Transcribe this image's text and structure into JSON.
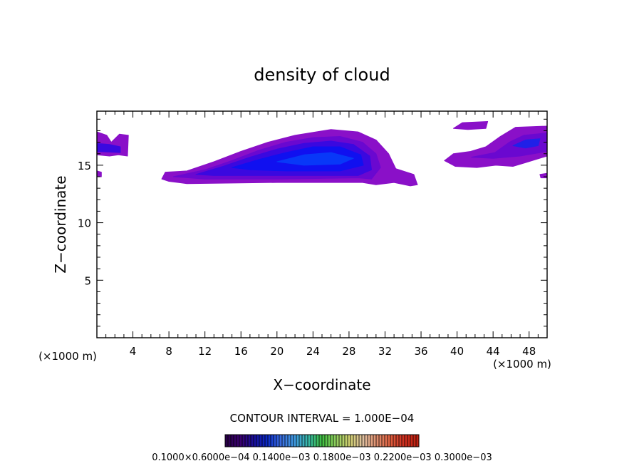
{
  "chart_data": {
    "type": "heatmap",
    "title": "density of cloud",
    "xlabel": "X−coordinate",
    "ylabel": "Z−coordinate",
    "x_unit": "(×1000 m)",
    "xlim": [
      0,
      50
    ],
    "ylim": [
      0,
      19.7
    ],
    "xticks": [
      4,
      8,
      12,
      16,
      20,
      24,
      28,
      32,
      36,
      40,
      44,
      48
    ],
    "yticks": [
      5,
      10,
      15
    ],
    "contour_interval": "CONTOUR INTERVAL = 1.000E−04",
    "colorbar_labels": "0.1000×0.6000e−04 0.1400e−03 0.1800e−03 0.2200e−03 0.3000e−03",
    "colorbar_colors": [
      "#2a004a",
      "#3b0070",
      "#1a0f9a",
      "#0a2ac8",
      "#3a6ee0",
      "#3f9ae0",
      "#37b8a8",
      "#3fbf3f",
      "#8fcf5f",
      "#d0d070",
      "#e0c0a0",
      "#e09070",
      "#e06040",
      "#d03020",
      "#c02010"
    ],
    "cloud_shapes": [
      {
        "name": "main-cloud-purple",
        "color": "#8a10c8",
        "points": [
          [
            7.2,
            13.8
          ],
          [
            7.6,
            14.4
          ],
          [
            10,
            14.5
          ],
          [
            13,
            15.3
          ],
          [
            16,
            16.2
          ],
          [
            19,
            17.0
          ],
          [
            22,
            17.6
          ],
          [
            26,
            18.1
          ],
          [
            29,
            17.9
          ],
          [
            31,
            17.2
          ],
          [
            32.4,
            16.0
          ],
          [
            33.2,
            14.7
          ],
          [
            35.2,
            14.2
          ],
          [
            35.6,
            13.3
          ],
          [
            34.8,
            13.2
          ],
          [
            33,
            13.5
          ],
          [
            31,
            13.3
          ],
          [
            29.5,
            13.5
          ],
          [
            20,
            13.5
          ],
          [
            10,
            13.4
          ],
          [
            8,
            13.6
          ]
        ]
      },
      {
        "name": "main-cloud-violet",
        "color": "#6a08d0",
        "points": [
          [
            8.5,
            14.0
          ],
          [
            12,
            14.6
          ],
          [
            15,
            15.4
          ],
          [
            18,
            16.3
          ],
          [
            21,
            17.0
          ],
          [
            24,
            17.4
          ],
          [
            27,
            17.5
          ],
          [
            29.5,
            17.0
          ],
          [
            31,
            16.0
          ],
          [
            31.5,
            14.8
          ],
          [
            30.5,
            13.8
          ],
          [
            29,
            13.9
          ],
          [
            20,
            13.8
          ],
          [
            12,
            13.8
          ]
        ]
      },
      {
        "name": "main-cloud-indigo",
        "color": "#3a08e0",
        "points": [
          [
            11,
            14.2
          ],
          [
            14,
            14.9
          ],
          [
            17,
            15.7
          ],
          [
            20,
            16.4
          ],
          [
            23,
            16.9
          ],
          [
            26,
            17.1
          ],
          [
            28.5,
            16.8
          ],
          [
            30.3,
            15.8
          ],
          [
            30.5,
            14.6
          ],
          [
            29,
            14.1
          ],
          [
            20,
            14.1
          ],
          [
            13,
            14.1
          ]
        ]
      },
      {
        "name": "main-cloud-blue",
        "color": "#1010f0",
        "points": [
          [
            15,
            14.8
          ],
          [
            18,
            15.5
          ],
          [
            21,
            16.1
          ],
          [
            24,
            16.6
          ],
          [
            27,
            16.6
          ],
          [
            29.3,
            15.9
          ],
          [
            29.6,
            15.0
          ],
          [
            27,
            14.5
          ],
          [
            21,
            14.5
          ],
          [
            17,
            14.6
          ]
        ]
      },
      {
        "name": "main-cloud-core",
        "color": "#0838f8",
        "points": [
          [
            20,
            15.3
          ],
          [
            23,
            15.9
          ],
          [
            26,
            16.1
          ],
          [
            28.5,
            15.6
          ],
          [
            27,
            15.1
          ],
          [
            23,
            15.0
          ]
        ]
      },
      {
        "name": "left-edge-cloud",
        "color": "#8a10c8",
        "points": [
          [
            0,
            17.9
          ],
          [
            1.1,
            17.6
          ],
          [
            1.6,
            17.0
          ],
          [
            2.5,
            17.7
          ],
          [
            3.5,
            17.6
          ],
          [
            3.4,
            15.8
          ],
          [
            2.4,
            15.9
          ],
          [
            1.4,
            15.8
          ],
          [
            0,
            15.9
          ]
        ]
      },
      {
        "name": "left-edge-cloud-core",
        "color": "#3a08e0",
        "points": [
          [
            0,
            16.9
          ],
          [
            1.4,
            16.8
          ],
          [
            2.6,
            16.6
          ],
          [
            2.6,
            16.1
          ],
          [
            0,
            16.2
          ]
        ]
      },
      {
        "name": "right-upper-cloud",
        "color": "#8a10c8",
        "points": [
          [
            38.6,
            15.4
          ],
          [
            39.6,
            16.0
          ],
          [
            41.5,
            16.2
          ],
          [
            43.2,
            16.6
          ],
          [
            44.8,
            17.5
          ],
          [
            46.5,
            18.3
          ],
          [
            50,
            18.4
          ],
          [
            50,
            15.8
          ],
          [
            47.5,
            15.2
          ],
          [
            46.2,
            14.9
          ],
          [
            44.3,
            15.0
          ],
          [
            42.2,
            14.8
          ],
          [
            39.8,
            14.9
          ]
        ]
      },
      {
        "name": "right-upper-cloud-violet",
        "color": "#6a08d0",
        "points": [
          [
            41.6,
            15.7
          ],
          [
            44.2,
            16.1
          ],
          [
            45.8,
            17.0
          ],
          [
            47.4,
            17.6
          ],
          [
            50,
            17.8
          ],
          [
            50,
            16.2
          ],
          [
            47,
            15.8
          ],
          [
            44,
            15.6
          ]
        ]
      },
      {
        "name": "right-upper-cloud-core",
        "color": "#2020e8",
        "points": [
          [
            46.2,
            16.7
          ],
          [
            47.6,
            17.2
          ],
          [
            49.2,
            17.3
          ],
          [
            49.0,
            16.7
          ],
          [
            47.6,
            16.5
          ]
        ]
      },
      {
        "name": "top-right-blob",
        "color": "#8a10c8",
        "points": [
          [
            39.6,
            18.2
          ],
          [
            40.6,
            18.7
          ],
          [
            43.4,
            18.8
          ],
          [
            43.2,
            18.2
          ],
          [
            41.2,
            18.1
          ]
        ]
      },
      {
        "name": "right-edge-blob",
        "color": "#8a10c8",
        "points": [
          [
            49.2,
            14.2
          ],
          [
            50,
            14.3
          ],
          [
            50,
            13.9
          ],
          [
            49.3,
            13.9
          ]
        ]
      },
      {
        "name": "left-edge-blob",
        "color": "#8a10c8",
        "points": [
          [
            0,
            14.5
          ],
          [
            0.5,
            14.4
          ],
          [
            0.5,
            14.0
          ],
          [
            0,
            14.0
          ]
        ]
      }
    ]
  }
}
